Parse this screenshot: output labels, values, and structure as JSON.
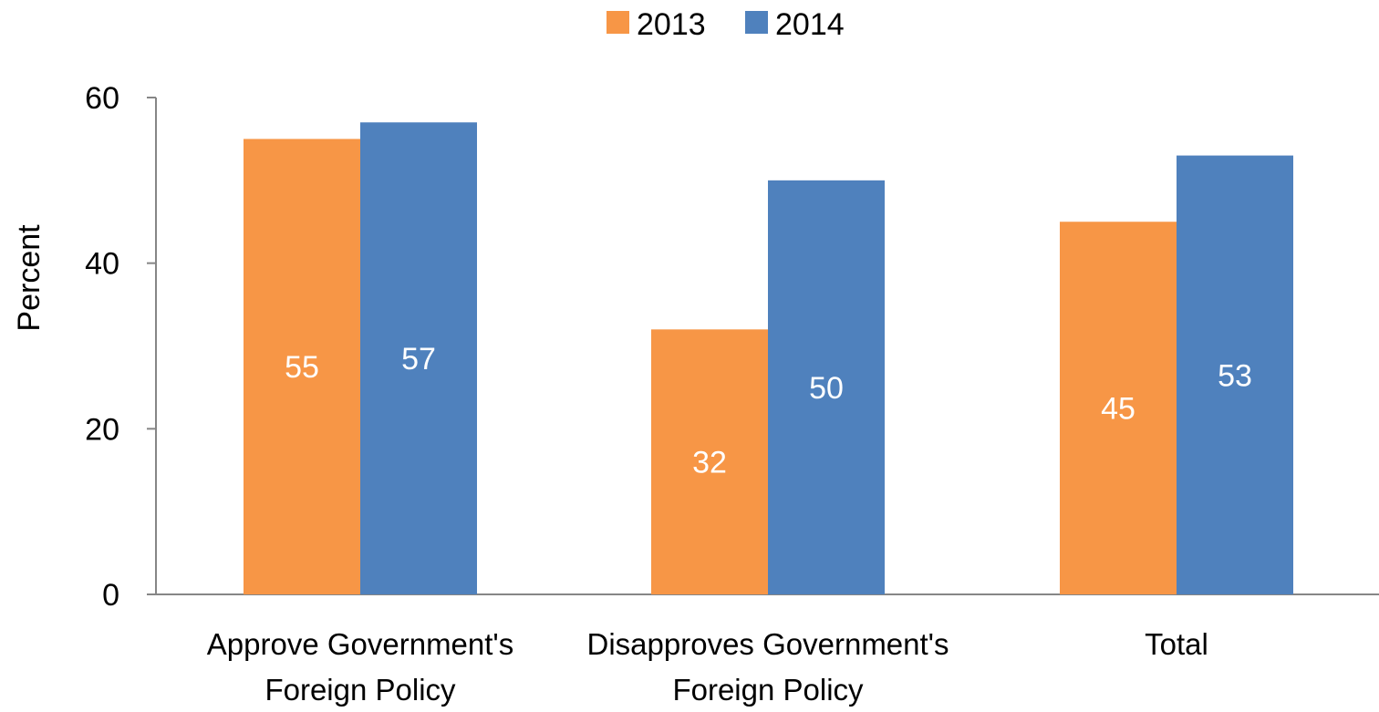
{
  "chart_data": {
    "type": "bar",
    "categories": [
      [
        "Approve Government's",
        "Foreign Policy"
      ],
      [
        "Disapproves Government's",
        "Foreign Policy"
      ],
      [
        "Total"
      ]
    ],
    "series": [
      {
        "name": "2013",
        "color": "#F79646",
        "values": [
          55,
          32,
          45
        ]
      },
      {
        "name": "2014",
        "color": "#4F81BD",
        "values": [
          57,
          50,
          53
        ]
      }
    ],
    "title": "",
    "xlabel": "",
    "ylabel": "Percent",
    "ylim": [
      0,
      60
    ],
    "yticks": [
      0,
      20,
      40,
      60
    ],
    "grid": false,
    "legend_position": "top-center",
    "data_label_color": "#FFFFFF",
    "axis_color": "#868686"
  }
}
